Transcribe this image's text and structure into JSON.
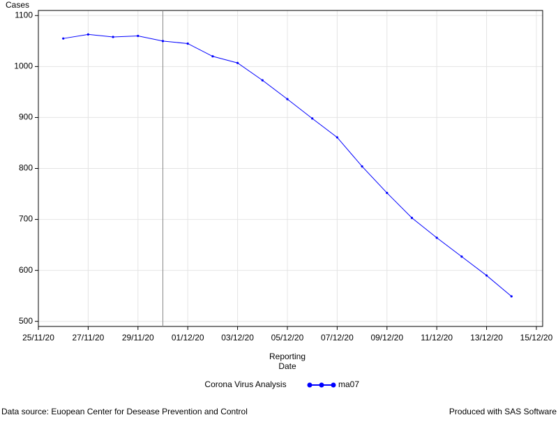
{
  "chart_data": {
    "type": "line",
    "y_label": "Cases",
    "x_label_lines": [
      "Reporting",
      "Date"
    ],
    "legend_title": "Corona Virus Analysis",
    "footnote_left": "Data source: Euopean Center for Desease Prevention and Control",
    "footnote_right": "Produced with SAS Software",
    "x": [
      "26/11/20",
      "27/11/20",
      "28/11/20",
      "29/11/20",
      "30/11/20",
      "01/12/20",
      "02/12/20",
      "03/12/20",
      "04/12/20",
      "05/12/20",
      "06/12/20",
      "07/12/20",
      "08/12/20",
      "09/12/20",
      "10/12/20",
      "11/12/20",
      "12/12/20",
      "13/12/20",
      "14/12/20"
    ],
    "series": [
      {
        "name": "ma07",
        "color": "#0000ff",
        "values": [
          1055,
          1063,
          1058,
          1060,
          1050,
          1045,
          1020,
          1007,
          973,
          936,
          898,
          861,
          804,
          752,
          703,
          664,
          627,
          590,
          549
        ]
      }
    ],
    "xlim": [
      "25/11/20",
      "15/12/20"
    ],
    "xticks": [
      "25/11/20",
      "27/11/20",
      "29/11/20",
      "01/12/20",
      "03/12/20",
      "05/12/20",
      "07/12/20",
      "09/12/20",
      "11/12/20",
      "13/12/20",
      "15/12/20"
    ],
    "ylim": [
      490,
      1110
    ],
    "yticks": [
      500,
      600,
      700,
      800,
      900,
      1000,
      1100
    ],
    "grid": true,
    "refline_x": "30/11/20"
  }
}
